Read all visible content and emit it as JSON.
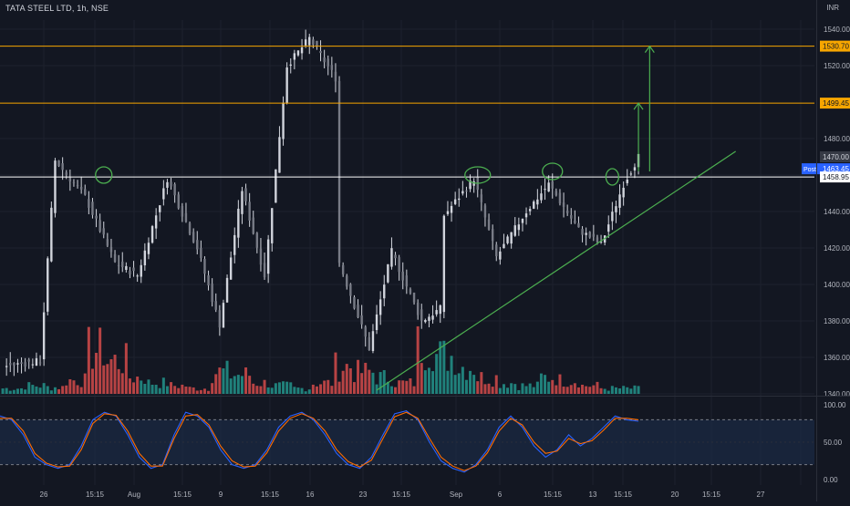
{
  "header": {
    "symbol_title": "TATA STEEL LTD, 1h, NSE",
    "currency": "INR"
  },
  "colors": {
    "background": "#131722",
    "grid": "#1e222d",
    "candle": "#d1d4dc",
    "volume_up": "#26a69a",
    "volume_down": "#ef5350",
    "resistance_line": "#f7a600",
    "neckline": "#ffffff",
    "annotation": "#4caf50",
    "stoch_k": "#2962ff",
    "stoch_d": "#ff6d00",
    "stoch_band": "#1e2f4f",
    "price_tag_orange": "#f7a600",
    "price_tag_blue": "#2962ff"
  },
  "chart_data": [
    {
      "type": "candlestick",
      "title": "TATA STEEL LTD, 1h, NSE",
      "x_tick_labels": [
        "26",
        "15:15",
        "Aug",
        "15:15",
        "9",
        "15:15",
        "16",
        "23",
        "15:15",
        "Sep",
        "6",
        "15:15",
        "13",
        "15:15",
        "20",
        "15:15",
        "27"
      ],
      "y_tick_labels": [
        "1540.00",
        "1520.00",
        "1480.00",
        "1460.00",
        "1440.00",
        "1420.00",
        "1400.00",
        "1380.00",
        "1360.00",
        "1340.00"
      ],
      "ylim": [
        1340,
        1545
      ],
      "price_tags": [
        {
          "label": "1530.70",
          "value": 1530.7,
          "style": "orange"
        },
        {
          "label": "1499.45",
          "value": 1499.45,
          "style": "orange"
        },
        {
          "label": "1470.00",
          "value": 1470.0,
          "style": "dark"
        },
        {
          "label": "1463.45",
          "value": 1463.45,
          "style": "blue",
          "prefix": "Post"
        },
        {
          "label": "1458.95",
          "value": 1458.95,
          "style": "white"
        }
      ],
      "horizontal_lines": [
        {
          "value": 1530.7,
          "color": "orange"
        },
        {
          "value": 1499.45,
          "color": "orange"
        },
        {
          "value": 1458.95,
          "color": "white"
        }
      ],
      "price_segments": [
        {
          "from_bar": 0,
          "to_bar": 10,
          "start": 1355,
          "end": 1358
        },
        {
          "from_bar": 10,
          "to_bar": 14,
          "start": 1358,
          "end": 1468
        },
        {
          "from_bar": 14,
          "to_bar": 22,
          "start": 1468,
          "end": 1448
        },
        {
          "from_bar": 22,
          "to_bar": 30,
          "start": 1448,
          "end": 1412
        },
        {
          "from_bar": 30,
          "to_bar": 36,
          "start": 1412,
          "end": 1405
        },
        {
          "from_bar": 36,
          "to_bar": 44,
          "start": 1405,
          "end": 1458
        },
        {
          "from_bar": 44,
          "to_bar": 52,
          "start": 1458,
          "end": 1420
        },
        {
          "from_bar": 52,
          "to_bar": 58,
          "start": 1420,
          "end": 1378
        },
        {
          "from_bar": 58,
          "to_bar": 64,
          "start": 1378,
          "end": 1452
        },
        {
          "from_bar": 64,
          "to_bar": 70,
          "start": 1452,
          "end": 1405
        },
        {
          "from_bar": 70,
          "to_bar": 76,
          "start": 1405,
          "end": 1520
        },
        {
          "from_bar": 76,
          "to_bar": 82,
          "start": 1520,
          "end": 1535
        },
        {
          "from_bar": 82,
          "to_bar": 90,
          "start": 1535,
          "end": 1510
        },
        {
          "from_bar": 90,
          "to_bar": 98,
          "start": 1412,
          "end": 1365
        },
        {
          "from_bar": 98,
          "to_bar": 104,
          "start": 1365,
          "end": 1418
        },
        {
          "from_bar": 104,
          "to_bar": 112,
          "start": 1418,
          "end": 1380
        },
        {
          "from_bar": 112,
          "to_bar": 118,
          "start": 1380,
          "end": 1388
        },
        {
          "from_bar": 118,
          "to_bar": 126,
          "start": 1438,
          "end": 1458
        },
        {
          "from_bar": 126,
          "to_bar": 132,
          "start": 1458,
          "end": 1415
        },
        {
          "from_bar": 132,
          "to_bar": 140,
          "start": 1415,
          "end": 1440
        },
        {
          "from_bar": 140,
          "to_bar": 146,
          "start": 1440,
          "end": 1455
        },
        {
          "from_bar": 146,
          "to_bar": 154,
          "start": 1455,
          "end": 1430
        },
        {
          "from_bar": 154,
          "to_bar": 160,
          "start": 1430,
          "end": 1422
        },
        {
          "from_bar": 160,
          "to_bar": 166,
          "start": 1422,
          "end": 1455
        },
        {
          "from_bar": 166,
          "to_bar": 170,
          "start": 1455,
          "end": 1470
        }
      ],
      "volume_levels": [
        0.1,
        0.15,
        0.12,
        0.25,
        0.8,
        0.6,
        0.3,
        0.2,
        0.15,
        0.1,
        0.4,
        0.35,
        0.2,
        0.15,
        0.1,
        0.2,
        0.5,
        0.4,
        0.3,
        0.2,
        0.9,
        0.7,
        0.5,
        0.3,
        0.2,
        0.15,
        0.3,
        0.25,
        0.15,
        0.1,
        0.1
      ],
      "annotations": [
        {
          "kind": "ellipse",
          "bar": 27,
          "value": 1460
        },
        {
          "kind": "ellipse",
          "bar": 127,
          "value": 1460
        },
        {
          "kind": "ellipse",
          "bar": 147,
          "value": 1462
        },
        {
          "kind": "ellipse",
          "bar": 163,
          "value": 1459
        },
        {
          "kind": "trendline",
          "from_bar": 100,
          "from_value": 1342,
          "to_bar": 196,
          "to_value": 1473
        },
        {
          "kind": "arrow",
          "bar": 170,
          "from_value": 1462,
          "to_value": 1499.45
        },
        {
          "kind": "arrow",
          "bar": 173,
          "from_value": 1462,
          "to_value": 1530.7
        }
      ]
    },
    {
      "type": "line",
      "title": "",
      "y_tick_labels": [
        "100.00",
        "50.00",
        "0.00"
      ],
      "ylim": [
        0,
        100
      ],
      "band": [
        20,
        80
      ],
      "series": [
        {
          "color_key": "stoch_k",
          "values": [
            85,
            80,
            60,
            30,
            20,
            15,
            20,
            45,
            80,
            90,
            85,
            60,
            30,
            15,
            20,
            60,
            90,
            85,
            70,
            40,
            20,
            15,
            20,
            40,
            70,
            85,
            90,
            80,
            60,
            35,
            20,
            15,
            30,
            60,
            88,
            92,
            80,
            50,
            25,
            15,
            10,
            20,
            40,
            70,
            85,
            70,
            45,
            30,
            40,
            60,
            45,
            55,
            70,
            85,
            80,
            78
          ]
        },
        {
          "color_key": "stoch_d",
          "values": [
            82,
            82,
            65,
            35,
            22,
            17,
            18,
            40,
            75,
            88,
            86,
            65,
            35,
            18,
            18,
            55,
            85,
            87,
            73,
            45,
            25,
            17,
            18,
            36,
            65,
            82,
            88,
            82,
            65,
            40,
            24,
            17,
            26,
            55,
            84,
            90,
            82,
            55,
            30,
            18,
            12,
            18,
            36,
            65,
            82,
            73,
            50,
            35,
            38,
            55,
            48,
            52,
            66,
            82,
            82,
            80
          ]
        }
      ]
    }
  ]
}
